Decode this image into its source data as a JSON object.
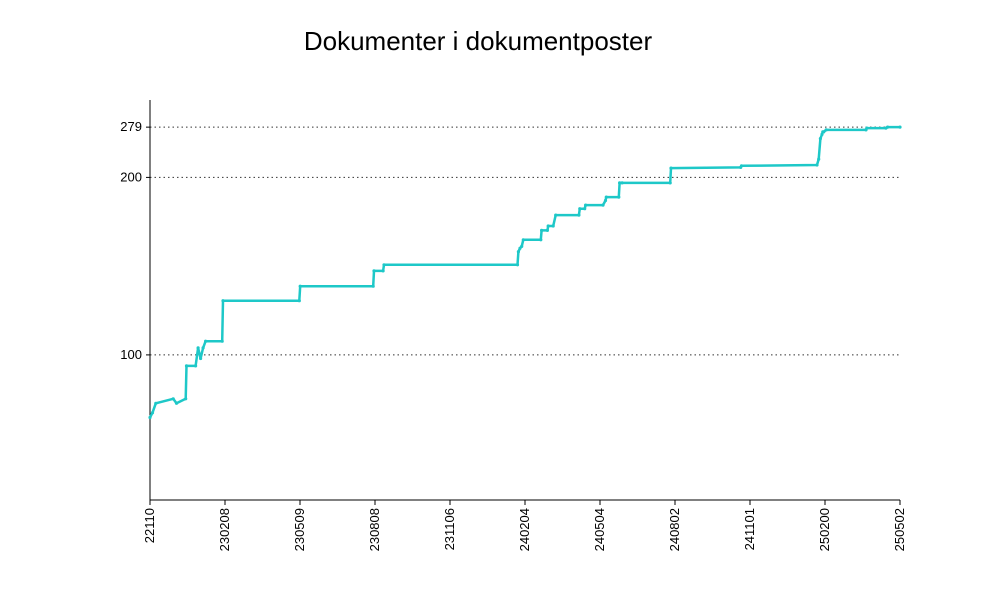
{
  "chart_data": {
    "type": "line",
    "title": "Dokumenter i dokumentposter",
    "xlabel": "",
    "ylabel": "",
    "x_ticks": [
      "22110",
      "230208",
      "230509",
      "230808",
      "231106",
      "240204",
      "240504",
      "240802",
      "241101",
      "250200",
      "250502"
    ],
    "y_ticks": [
      100,
      200,
      279
    ],
    "ylim": [
      0,
      279
    ],
    "grid": "horizontal-dotted",
    "legend": "none",
    "color": "#1ec8c8",
    "series": [
      {
        "x": [
          "2022-11-10",
          "2022-11-13",
          "2022-11-17",
          "2022-12-08",
          "2022-12-12",
          "2022-12-23",
          "2022-12-24",
          "2023-01-04",
          "2023-01-07",
          "2023-01-10",
          "2023-01-13",
          "2023-01-16",
          "2023-02-05",
          "2023-02-06",
          "2023-05-09",
          "2023-05-10",
          "2023-08-06",
          "2023-08-07",
          "2023-08-18",
          "2023-08-19",
          "2024-01-27",
          "2024-01-28",
          "2024-01-30",
          "2024-02-01",
          "2024-02-03",
          "2024-02-24",
          "2024-02-25",
          "2024-03-03",
          "2024-03-04",
          "2024-03-10",
          "2024-03-13",
          "2024-04-10",
          "2024-04-11",
          "2024-04-17",
          "2024-04-18",
          "2024-05-09",
          "2024-05-12",
          "2024-05-13",
          "2024-05-28",
          "2024-05-29",
          "2024-06-01",
          "2024-07-29",
          "2024-07-30",
          "2024-10-22",
          "2024-10-23",
          "2025-01-22",
          "2025-01-24",
          "2025-01-26",
          "2025-01-28",
          "2025-01-29",
          "2025-01-30",
          "2025-02-02",
          "2025-03-22",
          "2025-03-23",
          "2025-04-15",
          "2025-04-17",
          "2025-05-02"
        ],
        "y": [
          85,
          86,
          88,
          89,
          88,
          89,
          97,
          97,
          102,
          99,
          102,
          104,
          104,
          118,
          118,
          124,
          124,
          131,
          131,
          134,
          134,
          141,
          143,
          144,
          148,
          148,
          154,
          154,
          157,
          157,
          165,
          165,
          170,
          170,
          173,
          173,
          177,
          180,
          180,
          194,
          194,
          194,
          211,
          212,
          214,
          215,
          223,
          256,
          264,
          269,
          269,
          273,
          273,
          277,
          277,
          279,
          279
        ]
      }
    ]
  }
}
